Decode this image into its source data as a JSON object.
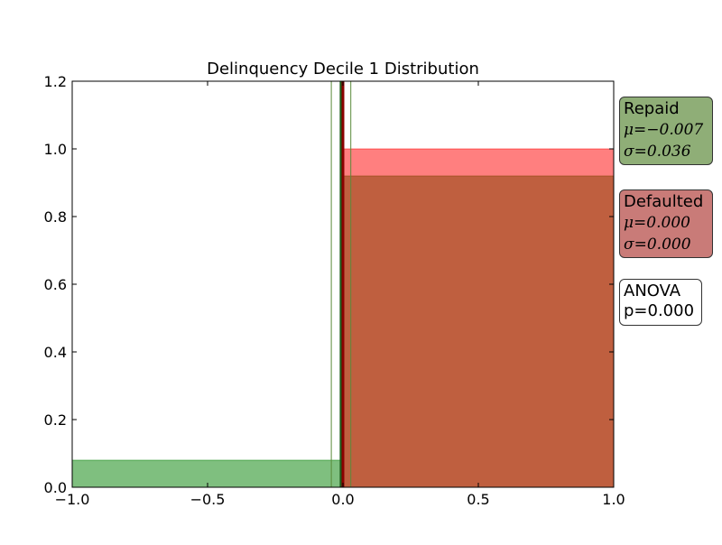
{
  "chart_data": {
    "type": "bar",
    "title": "Delinquency Decile 1 Distribution",
    "xlabel": "",
    "ylabel": "",
    "xlim": [
      -1.0,
      1.0
    ],
    "ylim": [
      0.0,
      1.2
    ],
    "x_ticks": [
      -1.0,
      -0.5,
      0.0,
      0.5,
      1.0
    ],
    "x_tick_labels": [
      "−1.0",
      "−0.5",
      "0.0",
      "0.5",
      "1.0"
    ],
    "y_ticks": [
      0.0,
      0.2,
      0.4,
      0.6,
      0.8,
      1.0,
      1.2
    ],
    "y_tick_labels": [
      "0.0",
      "0.2",
      "0.4",
      "0.6",
      "0.8",
      "1.0",
      "1.2"
    ],
    "grid": false,
    "series": [
      {
        "name": "Repaid",
        "color": "#008000",
        "bins": [
          {
            "x0": -1.0,
            "x1": 0.0,
            "value": 0.08
          },
          {
            "x0": 0.0,
            "x1": 1.0,
            "value": 0.92
          }
        ],
        "mean": -0.007,
        "std": 0.036
      },
      {
        "name": "Defaulted",
        "color": "#ff0000",
        "bins": [
          {
            "x0": 0.0,
            "x1": 1.0,
            "value": 1.0
          }
        ],
        "mean": 0.0,
        "std": 0.0
      }
    ],
    "reference_lines": [
      {
        "x": -0.043,
        "color": "#5a8a3a"
      },
      {
        "x": 0.029,
        "color": "#5a8a3a"
      },
      {
        "x": -0.007,
        "color": "#1a5a1a"
      },
      {
        "x": 0.0,
        "color": "#8b0000"
      }
    ]
  },
  "annotations": {
    "repaid": {
      "title": "Repaid",
      "mu": "μ=−0.007",
      "sigma": "σ=0.036",
      "color": "#8fae77"
    },
    "defaulted": {
      "title": "Defaulted",
      "mu": "μ=0.000",
      "sigma": "σ=0.000",
      "color": "#c97b78"
    },
    "anova": {
      "line1": "ANOVA",
      "line2": "p=0.000"
    }
  }
}
